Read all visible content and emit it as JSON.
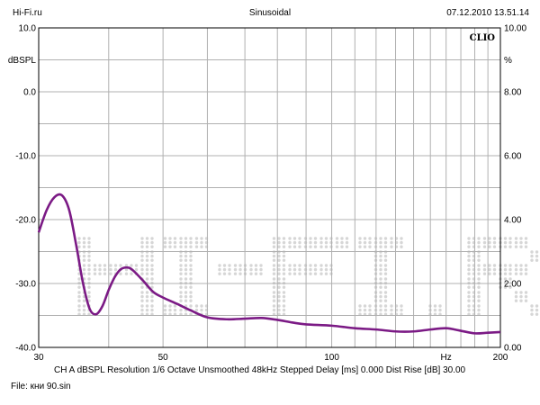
{
  "header": {
    "left": "Hi-Fi.ru",
    "center": "Sinusoidal",
    "right": "07.12.2010 13.51.14"
  },
  "chart_data": {
    "type": "line",
    "title": "Sinusoidal",
    "x_scale": "log",
    "xlim": [
      30,
      200
    ],
    "x_ticks": [
      30,
      50,
      100,
      200
    ],
    "x_unit": "Hz",
    "ylim": [
      -40,
      10
    ],
    "y_ticks": [
      -40,
      -30,
      -20,
      -10,
      0,
      10
    ],
    "y_tick_labels": [
      "-40.0",
      "-30.0",
      "-20.0",
      "-10.0",
      "0.0",
      "10.0"
    ],
    "y_unit": "dBSPL",
    "y2lim": [
      0,
      10
    ],
    "y2_ticks": [
      0,
      2,
      4,
      6,
      8,
      10
    ],
    "y2_tick_labels": [
      "0.00",
      "2.00",
      "4.00",
      "6.00",
      "8.00",
      "10.00"
    ],
    "y2_unit": "%",
    "grid": true,
    "brand": "CLIO",
    "watermark": "Hi-Fi.ru",
    "series": [
      {
        "color": "#7b1a85",
        "x": [
          30,
          31,
          32,
          33,
          34,
          35,
          36,
          37,
          38,
          39,
          40,
          41,
          42,
          43,
          44,
          46,
          48,
          50,
          53,
          56,
          60,
          65,
          70,
          75,
          80,
          85,
          90,
          100,
          110,
          120,
          130,
          140,
          150,
          160,
          170,
          180,
          190,
          200
        ],
        "y": [
          -22,
          -18.5,
          -16.5,
          -16.2,
          -18.5,
          -24,
          -30,
          -34,
          -34.8,
          -33.5,
          -31,
          -29,
          -27.8,
          -27.5,
          -27.8,
          -29.5,
          -31.3,
          -32.2,
          -33.2,
          -34.2,
          -35.3,
          -35.6,
          -35.5,
          -35.4,
          -35.7,
          -36.1,
          -36.4,
          -36.6,
          -37,
          -37.2,
          -37.5,
          -37.5,
          -37.2,
          -37,
          -37.4,
          -37.8,
          -37.7,
          -37.6
        ]
      }
    ]
  },
  "footer": {
    "params": "CH A   dBSPL   Resolution 1/6 Octave   Unsmoothed   48kHz   Stepped    Delay [ms] 0.000   Dist Rise [dB] 30.00",
    "file": "File: кни 90.sin"
  },
  "colors": {
    "curve": "#7b1a85",
    "grid": "#b0b0b0",
    "watermark": "#d6d6d6",
    "frame": "#000000"
  }
}
